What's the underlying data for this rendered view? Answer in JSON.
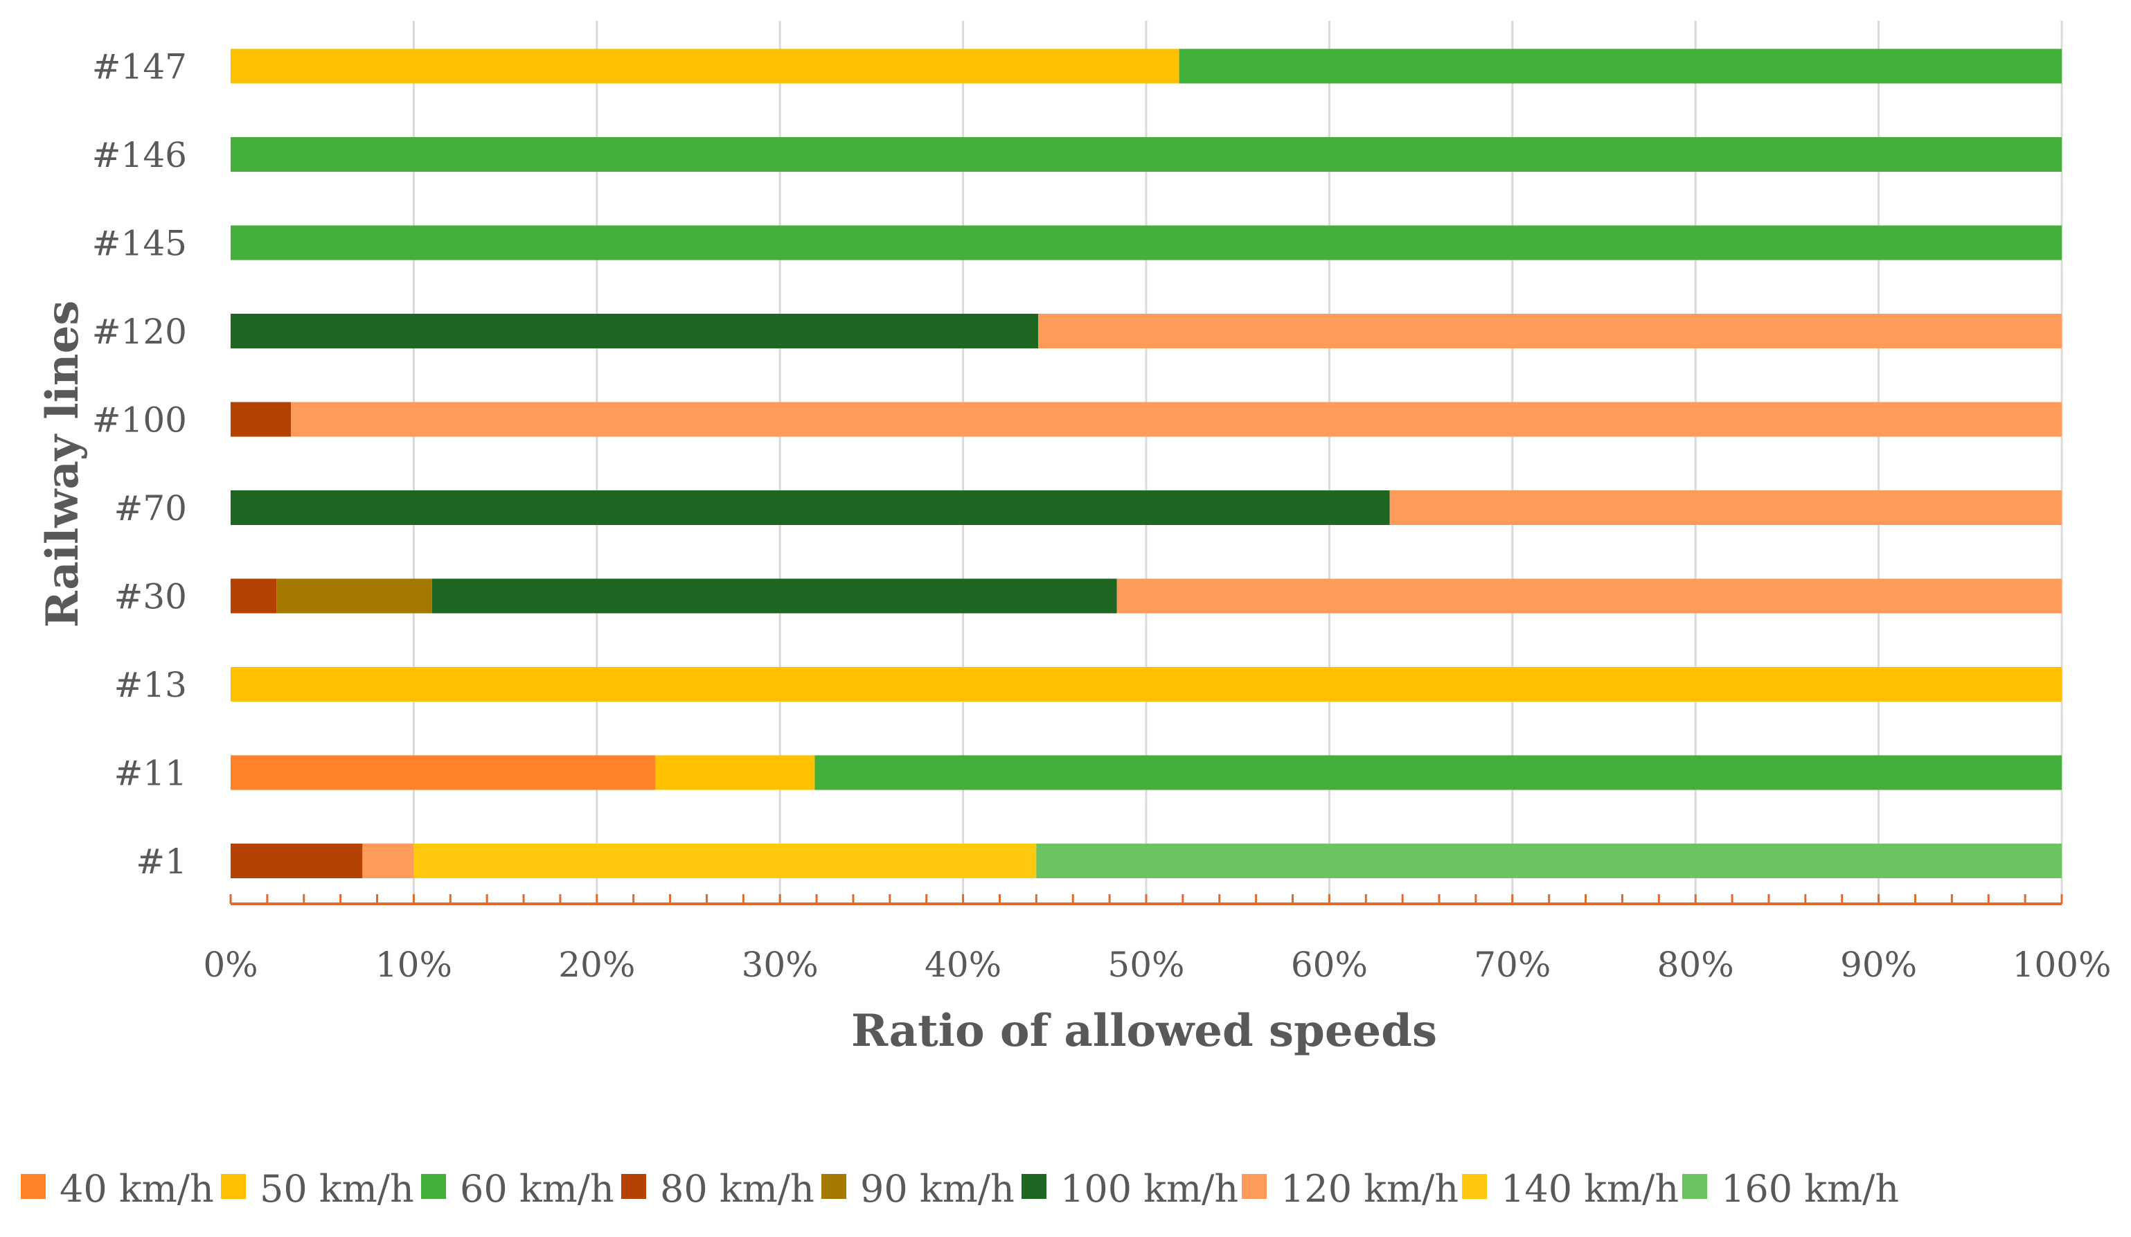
{
  "chart_data": {
    "type": "bar",
    "orientation": "horizontal",
    "stacked": "percent",
    "title": "",
    "xlabel": "Ratio of allowed speeds",
    "ylabel": "Railway lines",
    "xlim": [
      0,
      100
    ],
    "x_ticks": [
      "0%",
      "10%",
      "20%",
      "30%",
      "40%",
      "50%",
      "60%",
      "70%",
      "80%",
      "90%",
      "100%"
    ],
    "grid": "vertical",
    "legend_position": "bottom",
    "categories": [
      "#1",
      "#11",
      "#13",
      "#30",
      "#70",
      "#100",
      "#120",
      "#145",
      "#146",
      "#147"
    ],
    "series": [
      {
        "name": "40 km/h",
        "color": "#FF8128",
        "values": [
          0,
          23.2,
          0,
          0,
          0,
          0,
          0,
          0,
          0,
          0
        ]
      },
      {
        "name": "50 km/h",
        "color": "#FFC000",
        "values": [
          0,
          8.7,
          100,
          0,
          0,
          0,
          0,
          0,
          0,
          51.8
        ]
      },
      {
        "name": "60 km/h",
        "color": "#44AF3A",
        "values": [
          0,
          68.1,
          0,
          0,
          0,
          0,
          0,
          100,
          100,
          48.2
        ]
      },
      {
        "name": "80 km/h",
        "color": "#B44200",
        "values": [
          7.2,
          0,
          0,
          2.5,
          0,
          3.3,
          0,
          0,
          0,
          0
        ]
      },
      {
        "name": "90 km/h",
        "color": "#A57800",
        "values": [
          0,
          0,
          0,
          8.5,
          0,
          0,
          0,
          0,
          0,
          0
        ]
      },
      {
        "name": "100 km/h",
        "color": "#1F6623",
        "values": [
          0,
          0,
          0,
          37.4,
          63.3,
          0,
          44.1,
          0,
          0,
          0
        ]
      },
      {
        "name": "120 km/h",
        "color": "#FF9B5A",
        "values": [
          2.8,
          0,
          0,
          51.6,
          36.7,
          96.7,
          55.9,
          0,
          0,
          0
        ]
      },
      {
        "name": "140 km/h",
        "color": "#FFC90E",
        "values": [
          34.0,
          0,
          0,
          0,
          0,
          0,
          0,
          0,
          0,
          0
        ]
      },
      {
        "name": "160 km/h",
        "color": "#6CC460",
        "values": [
          56.0,
          0,
          0,
          0,
          0,
          0,
          0,
          0,
          0,
          0
        ]
      }
    ]
  }
}
